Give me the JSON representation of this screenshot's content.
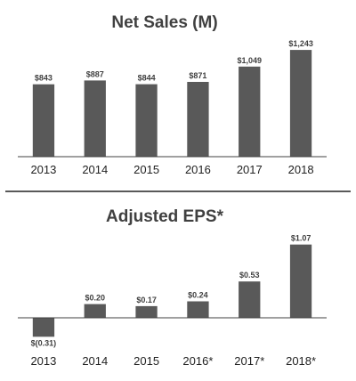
{
  "colors": {
    "bar": "#595959",
    "axis": "#404040",
    "divider": "#595959",
    "text": "#404040"
  },
  "chart_data": [
    {
      "type": "bar",
      "title": "Net Sales (M)",
      "categories": [
        "2013",
        "2014",
        "2015",
        "2016",
        "2017",
        "2018"
      ],
      "values": [
        843,
        887,
        844,
        871,
        1049,
        1243
      ],
      "value_labels": [
        "$843",
        "$887",
        "$844",
        "$871",
        "$1,049",
        "$1,243"
      ],
      "xlabel": "",
      "ylabel": "",
      "ylim": [
        0,
        1300
      ],
      "grid": false,
      "legend": "none"
    },
    {
      "type": "bar",
      "title": "Adjusted EPS*",
      "categories": [
        "2013",
        "2014",
        "2015",
        "2016*",
        "2017*",
        "2018*"
      ],
      "values": [
        -0.31,
        0.2,
        0.17,
        0.24,
        0.53,
        1.07
      ],
      "value_labels": [
        "$(0.31)",
        "$0.20",
        "$0.17",
        "$0.24",
        "$0.53",
        "$1.07"
      ],
      "xlabel": "",
      "ylabel": "",
      "ylim": [
        -0.35,
        1.15
      ],
      "grid": false,
      "legend": "none"
    }
  ]
}
